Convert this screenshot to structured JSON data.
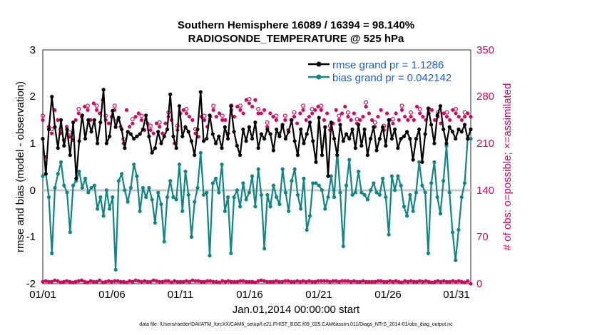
{
  "chart_data": {
    "type": "line",
    "title": "Southern Hemisphere 16089 / 16394 = 98.140%",
    "subtitle": "RADIOSONDE_TEMPERATURE @ 525 hPa",
    "xlabel": "Jan.01,2014 00:00:00 start",
    "ylabel_left": "rmse and bias (model - observation)",
    "ylabel_right": "# of obs: o=possible; ×=assimilated",
    "ylim_left": [
      -2,
      3
    ],
    "ylim_right": [
      0,
      350
    ],
    "xlim": [
      0,
      31
    ],
    "x_ticks": [
      0,
      5,
      10,
      15,
      20,
      25,
      30
    ],
    "x_tick_labels": [
      "01/01",
      "01/06",
      "01/11",
      "01/16",
      "01/21",
      "01/26",
      "01/31"
    ],
    "y_ticks_left": [
      "3",
      "2",
      "1",
      "0",
      "-1",
      "-2"
    ],
    "y_ticks_right": [
      "350",
      "280",
      "210",
      "140",
      "70",
      "0"
    ],
    "legend": [
      "rmse grand pr = 1.1286",
      "bias grand pr = 0.042142"
    ],
    "footnote": "data file: /Users/raeder/DAI/ATM_forcXX/CAM6_setup/f.e21.FHIST_BGC.f09_025.CAM6assim.011/Diags_NTrS_2014-01/obs_diag_output.nc",
    "colors": {
      "rmse": "#000000",
      "bias": "#0f8585",
      "counts": "#cc0a5f",
      "zero": "#c8c8c8"
    },
    "series": [
      {
        "name": "rmse",
        "axis": "left",
        "values": [
          1.1,
          0.35,
          1.3,
          2.0,
          1.35,
          0.9,
          1.5,
          0.95,
          1.3,
          0.75,
          1.45,
          0.25,
          1.05,
          1.6,
          1.1,
          1.5,
          1.25,
          1.5,
          1.0,
          1.45,
          2.15,
          1.0,
          1.15,
          1.7,
          1.35,
          1.55,
          1.3,
          0.9,
          1.25,
          1.2,
          1.1,
          1.15,
          1.2,
          1.3,
          1.6,
          1.15,
          0.8,
          0.9,
          1.25,
          1.0,
          1.15,
          1.3,
          2.05,
          1.15,
          0.9,
          1.8,
          1.15,
          1.35,
          1.25,
          1.05,
          0.75,
          1.3,
          2.1,
          1.05,
          1.1,
          1.6,
          1.2,
          1.0,
          1.15,
          0.9,
          1.35,
          1.1,
          1.8,
          1.25,
          0.95,
          0.75,
          1.3,
          1.05,
          1.35,
          1.1,
          1.45,
          0.9,
          1.2,
          1.1,
          1.3,
          1.2,
          0.85,
          1.3,
          1.15,
          1.4,
          1.1,
          1.25,
          1.5,
          1.05,
          0.75,
          1.3,
          1.0,
          1.2,
          1.45,
          1.05,
          0.6,
          1.55,
          0.75,
          1.35,
          0.3,
          1.45,
          1.1,
          0.75,
          1.4,
          1.05,
          1.2,
          1.1,
          1.3,
          0.9,
          1.4,
          0.95,
          1.3,
          0.75,
          1.1,
          1.35,
          0.85,
          1.1,
          1.35,
          0.95,
          1.5,
          1.1,
          1.3,
          0.9,
          1.1,
          1.15,
          1.25,
          1.1,
          0.65,
          1.1,
          1.3,
          0.6,
          1.2,
          1.75,
          1.4,
          1.0,
          1.6,
          1.8,
          1.3,
          1.0,
          1.35,
          1.25,
          1.1,
          1.3,
          1.25,
          1.4,
          1.1,
          1.3
        ]
      },
      {
        "name": "bias",
        "axis": "left",
        "values": [
          0.3,
          0.35,
          -0.15,
          -1.35,
          0.05,
          0.35,
          0.6,
          0.1,
          -0.05,
          -0.9,
          0.1,
          0.2,
          0.4,
          0.05,
          0.25,
          -0.05,
          0.05,
          0.1,
          -0.4,
          -0.15,
          -0.55,
          0.0,
          -0.4,
          -0.15,
          -1.7,
          0.2,
          0.35,
          0.0,
          -0.25,
          0.05,
          0.55,
          0.3,
          -0.45,
          0.05,
          -0.15,
          0.05,
          -0.2,
          -0.7,
          -0.05,
          -0.3,
          -1.1,
          -0.15,
          0.2,
          -0.15,
          -0.2,
          0.55,
          -0.45,
          0.4,
          -0.1,
          -1.0,
          -0.25,
          0.05,
          0.8,
          -0.1,
          -0.05,
          -1.4,
          0.15,
          0.25,
          -0.05,
          0.55,
          -0.45,
          -0.15,
          -1.35,
          -0.15,
          0.0,
          -0.35,
          0.15,
          -0.2,
          -0.05,
          0.3,
          -0.35,
          0.45,
          -0.1,
          -1.25,
          -0.1,
          -0.35,
          0.1,
          -0.15,
          -0.3,
          0.45,
          -0.05,
          -0.45,
          0.2,
          0.45,
          -0.1,
          -0.4,
          0.25,
          -0.85,
          -0.55,
          0.15,
          0.15,
          0.1,
          0.0,
          -0.4,
          -0.15,
          0.3,
          -0.15,
          0.85,
          -0.05,
          -1.2,
          0.1,
          0.65,
          -0.1,
          -0.05,
          0.4,
          -0.05,
          -0.1,
          -0.2,
          0.0,
          0.15,
          -0.05,
          -0.1,
          0.25,
          -0.15,
          -0.95,
          0.3,
          0.0,
          0.3,
          0.1,
          -0.35,
          -0.55,
          -0.1,
          -0.45,
          -0.05,
          0.6,
          0.1,
          -0.05,
          -1.35,
          0.15,
          0.6,
          -0.15,
          -0.5,
          0.2,
          0.95,
          -0.05,
          -0.9,
          -1.5,
          -0.85,
          -0.15,
          0.15,
          1.1,
          1.1
        ]
      },
      {
        "name": "possible",
        "axis": "right",
        "values": [
          3,
          4,
          3,
          3,
          5,
          4,
          2,
          3,
          4,
          3,
          2,
          3,
          4,
          5,
          3,
          2,
          4,
          3,
          3,
          5,
          2,
          3,
          4,
          3,
          4,
          4,
          3,
          3,
          2,
          4,
          3,
          5,
          4,
          3,
          4,
          3,
          3,
          5,
          4,
          3,
          3,
          4,
          4,
          2,
          4,
          3,
          3,
          3,
          4,
          3,
          5,
          4,
          4,
          3,
          3,
          4,
          4,
          3,
          3,
          2,
          4,
          3,
          4,
          3,
          3,
          3,
          4,
          4,
          3,
          3,
          3,
          2,
          4,
          5,
          4,
          3,
          3,
          3,
          4,
          3,
          3,
          4,
          4,
          3,
          3,
          4,
          3,
          4,
          3,
          4,
          3,
          3,
          4,
          4,
          4,
          4,
          3,
          4,
          4,
          3,
          4,
          4,
          4,
          3,
          4,
          3,
          3,
          4,
          3,
          3,
          3,
          3,
          4,
          4,
          3,
          3,
          4,
          3,
          4,
          3,
          2,
          4,
          3,
          4,
          3,
          3,
          4,
          3,
          4,
          3,
          2,
          3,
          4,
          3,
          4,
          3,
          3,
          4,
          3,
          4,
          3,
          2,
          4,
          0
        ],
        "upper_values": [
          245,
          190,
          235,
          225,
          260,
          245,
          225,
          215,
          235,
          220,
          215,
          245,
          255,
          250,
          265,
          260,
          245,
          270,
          260,
          255,
          275,
          245,
          240,
          250,
          260,
          245,
          235,
          210,
          260,
          235,
          240,
          250,
          255,
          245,
          230,
          240,
          230,
          225,
          240,
          235,
          225,
          240,
          250,
          245,
          210,
          230,
          255,
          260,
          255,
          250,
          245,
          225,
          220,
          250,
          245,
          235,
          250,
          260,
          250,
          255,
          245,
          245,
          225,
          260,
          250,
          265,
          260,
          255,
          275,
          270,
          265,
          275,
          255,
          255,
          260,
          235,
          255,
          250,
          245,
          225,
          235,
          245,
          230,
          245,
          250,
          240,
          255,
          260,
          245,
          250,
          255,
          260,
          265,
          260,
          245,
          255,
          230,
          240,
          260,
          245,
          255,
          265,
          250,
          245,
          255,
          240,
          245,
          250,
          265,
          255,
          245,
          235,
          250,
          260,
          230,
          255,
          245,
          240,
          255,
          245,
          260,
          250,
          245,
          250,
          245,
          265,
          255,
          250,
          245,
          255,
          260,
          245,
          250,
          240,
          255,
          250,
          245,
          260,
          255,
          250,
          245,
          250,
          255,
          250
        ]
      }
    ]
  }
}
